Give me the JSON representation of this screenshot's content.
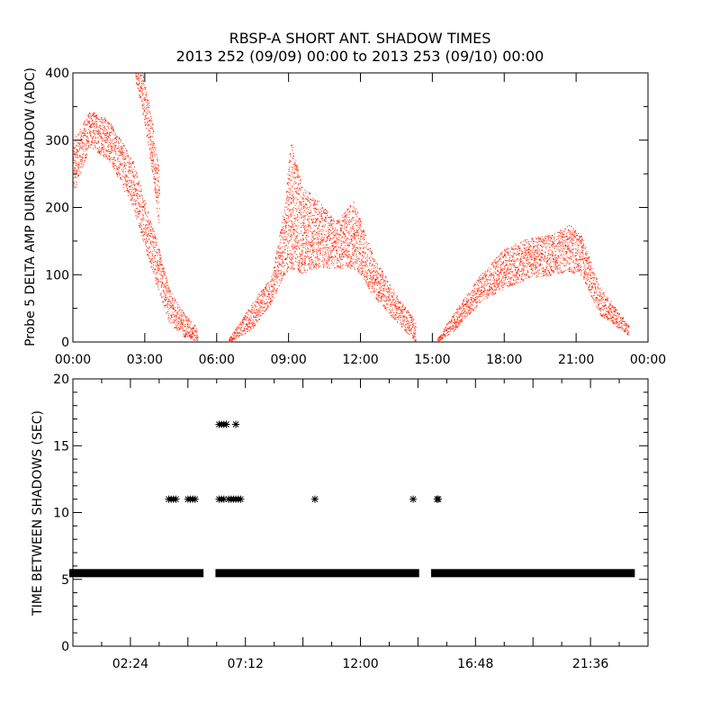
{
  "chart_data": [
    {
      "type": "scatter",
      "title": "RBSP-A SHORT ANT. SHADOW TIMES",
      "subtitle": "2013 252 (09/09) 00:00 to 2013 253 (09/10) 00:00",
      "xlabel": "",
      "ylabel": "Probe 5 DELTA AMP DURING SHADOW (ADC)",
      "xlim_hours": [
        0,
        24
      ],
      "ylim": [
        0,
        400
      ],
      "xticks": [
        "00:00",
        "03:00",
        "06:00",
        "09:00",
        "12:00",
        "15:00",
        "18:00",
        "21:00",
        "00:00"
      ],
      "yticks": [
        "0",
        "100",
        "200",
        "300",
        "400"
      ],
      "color": "#ff2000",
      "grid": false,
      "bands_hours_min_max": [
        [
          [
            0,
            220,
            300
          ],
          [
            0.7,
            290,
            345
          ],
          [
            1.5,
            270,
            330
          ],
          [
            2.5,
            200,
            270
          ],
          [
            3.5,
            80,
            150
          ],
          [
            4,
            30,
            80
          ],
          [
            4.5,
            10,
            50
          ],
          [
            5.2,
            0,
            20
          ]
        ],
        [
          [
            2.6,
            390,
            400
          ],
          [
            2.9,
            340,
            400
          ],
          [
            3.3,
            250,
            330
          ],
          [
            3.6,
            170,
            250
          ]
        ],
        [
          [
            6.5,
            0,
            5
          ],
          [
            7.5,
            20,
            60
          ],
          [
            8.3,
            60,
            100
          ],
          [
            8.8,
            100,
            200
          ],
          [
            9.1,
            110,
            300
          ],
          [
            9.6,
            100,
            230
          ],
          [
            10,
            110,
            220
          ],
          [
            11,
            110,
            180
          ],
          [
            11.7,
            110,
            210
          ],
          [
            12,
            100,
            180
          ],
          [
            12.5,
            70,
            130
          ],
          [
            13.5,
            30,
            70
          ],
          [
            14.3,
            0,
            30
          ]
        ],
        [
          [
            15.2,
            0,
            5
          ],
          [
            16,
            20,
            50
          ],
          [
            17,
            60,
            100
          ],
          [
            18,
            80,
            140
          ],
          [
            19,
            95,
            155
          ],
          [
            20,
            100,
            160
          ],
          [
            20.7,
            105,
            175
          ],
          [
            21.2,
            100,
            160
          ],
          [
            22,
            40,
            80
          ],
          [
            23.2,
            10,
            25
          ]
        ]
      ]
    },
    {
      "type": "scatter",
      "ylabel": "TIME BETWEEN SHADOWS (SEC)",
      "xlim_hours": [
        0,
        24
      ],
      "ylim": [
        0,
        20
      ],
      "xticks": [
        "02:24",
        "07:12",
        "12:00",
        "16:48",
        "21:36"
      ],
      "xtick_hours": [
        2.4,
        7.2,
        12,
        16.8,
        21.6
      ],
      "yticks": [
        "0",
        "5",
        "10",
        "15",
        "20"
      ],
      "marker": "asterisk",
      "color": "#000000",
      "baseline_value": 5.5,
      "baseline_ranges_hours": [
        [
          0,
          5.3
        ],
        [
          6.1,
          14.3
        ],
        [
          15.1,
          23.3
        ]
      ],
      "outliers": [
        {
          "value": 11,
          "hours": [
            4.0,
            4.1,
            4.2,
            4.3,
            4.8,
            4.9,
            5.0,
            5.1,
            6.1,
            6.2,
            6.3,
            6.5,
            6.6,
            6.7,
            6.8,
            6.9,
            7.0,
            10.1,
            14.2,
            15.2,
            15.25
          ]
        },
        {
          "value": 16.6,
          "hours": [
            6.1,
            6.2,
            6.3,
            6.4,
            6.8
          ]
        }
      ]
    }
  ]
}
